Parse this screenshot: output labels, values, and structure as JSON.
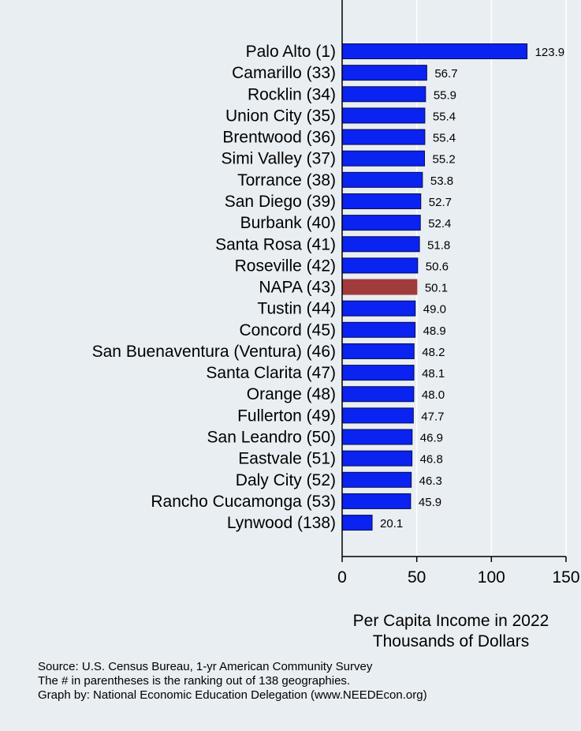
{
  "chart_data": {
    "type": "bar",
    "orientation": "horizontal",
    "categories": [
      "Palo Alto  (1)",
      "Camarillo (33)",
      "Rocklin (34)",
      "Union City (35)",
      "Brentwood (36)",
      "Simi Valley (37)",
      "Torrance (38)",
      "San Diego (39)",
      "Burbank (40)",
      "Santa Rosa (41)",
      "Roseville (42)",
      "NAPA (43)",
      "Tustin (44)",
      "Concord (45)",
      "San Buenaventura (Ventura) (46)",
      "Santa Clarita (47)",
      "Orange (48)",
      "Fullerton (49)",
      "San Leandro (50)",
      "Eastvale (51)",
      "Daly City (52)",
      "Rancho Cucamonga (53)",
      "Lynwood (138)"
    ],
    "values": [
      123.9,
      56.7,
      55.9,
      55.4,
      55.4,
      55.2,
      53.8,
      52.7,
      52.4,
      51.8,
      50.6,
      50.1,
      49.0,
      48.9,
      48.2,
      48.1,
      48.0,
      47.7,
      46.9,
      46.8,
      46.3,
      45.9,
      20.1
    ],
    "value_labels": [
      "123.9",
      "56.7",
      "55.9",
      "55.4",
      "55.4",
      "55.2",
      "53.8",
      "52.7",
      "52.4",
      "51.8",
      "50.6",
      "50.1",
      "49.0",
      "48.9",
      "48.2",
      "48.1",
      "48.0",
      "47.7",
      "46.9",
      "46.8",
      "46.3",
      "45.9",
      "20.1"
    ],
    "highlight_index": 11,
    "colors": {
      "bar": "#0a23f0",
      "highlight": "#a03c3c",
      "bar_edge": "#0a0a50",
      "grid": "#ffffff",
      "background": "#e9eef2"
    },
    "xlim": [
      0,
      150
    ],
    "xticks": [
      0,
      50,
      100,
      150
    ],
    "xtick_labels": [
      "0",
      "50",
      "100",
      "150"
    ],
    "xlabel_lines": [
      "Per Capita Income in 2022",
      "Thousands of Dollars"
    ],
    "grid": true
  },
  "notes": {
    "source": "Source: U.S. Census Bureau, 1-yr American Community Survey",
    "ranking": "The # in parentheses is the ranking out of 138 geographies.",
    "credit": "Graph by: National Economic Education Delegation (www.NEEDEcon.org)"
  }
}
